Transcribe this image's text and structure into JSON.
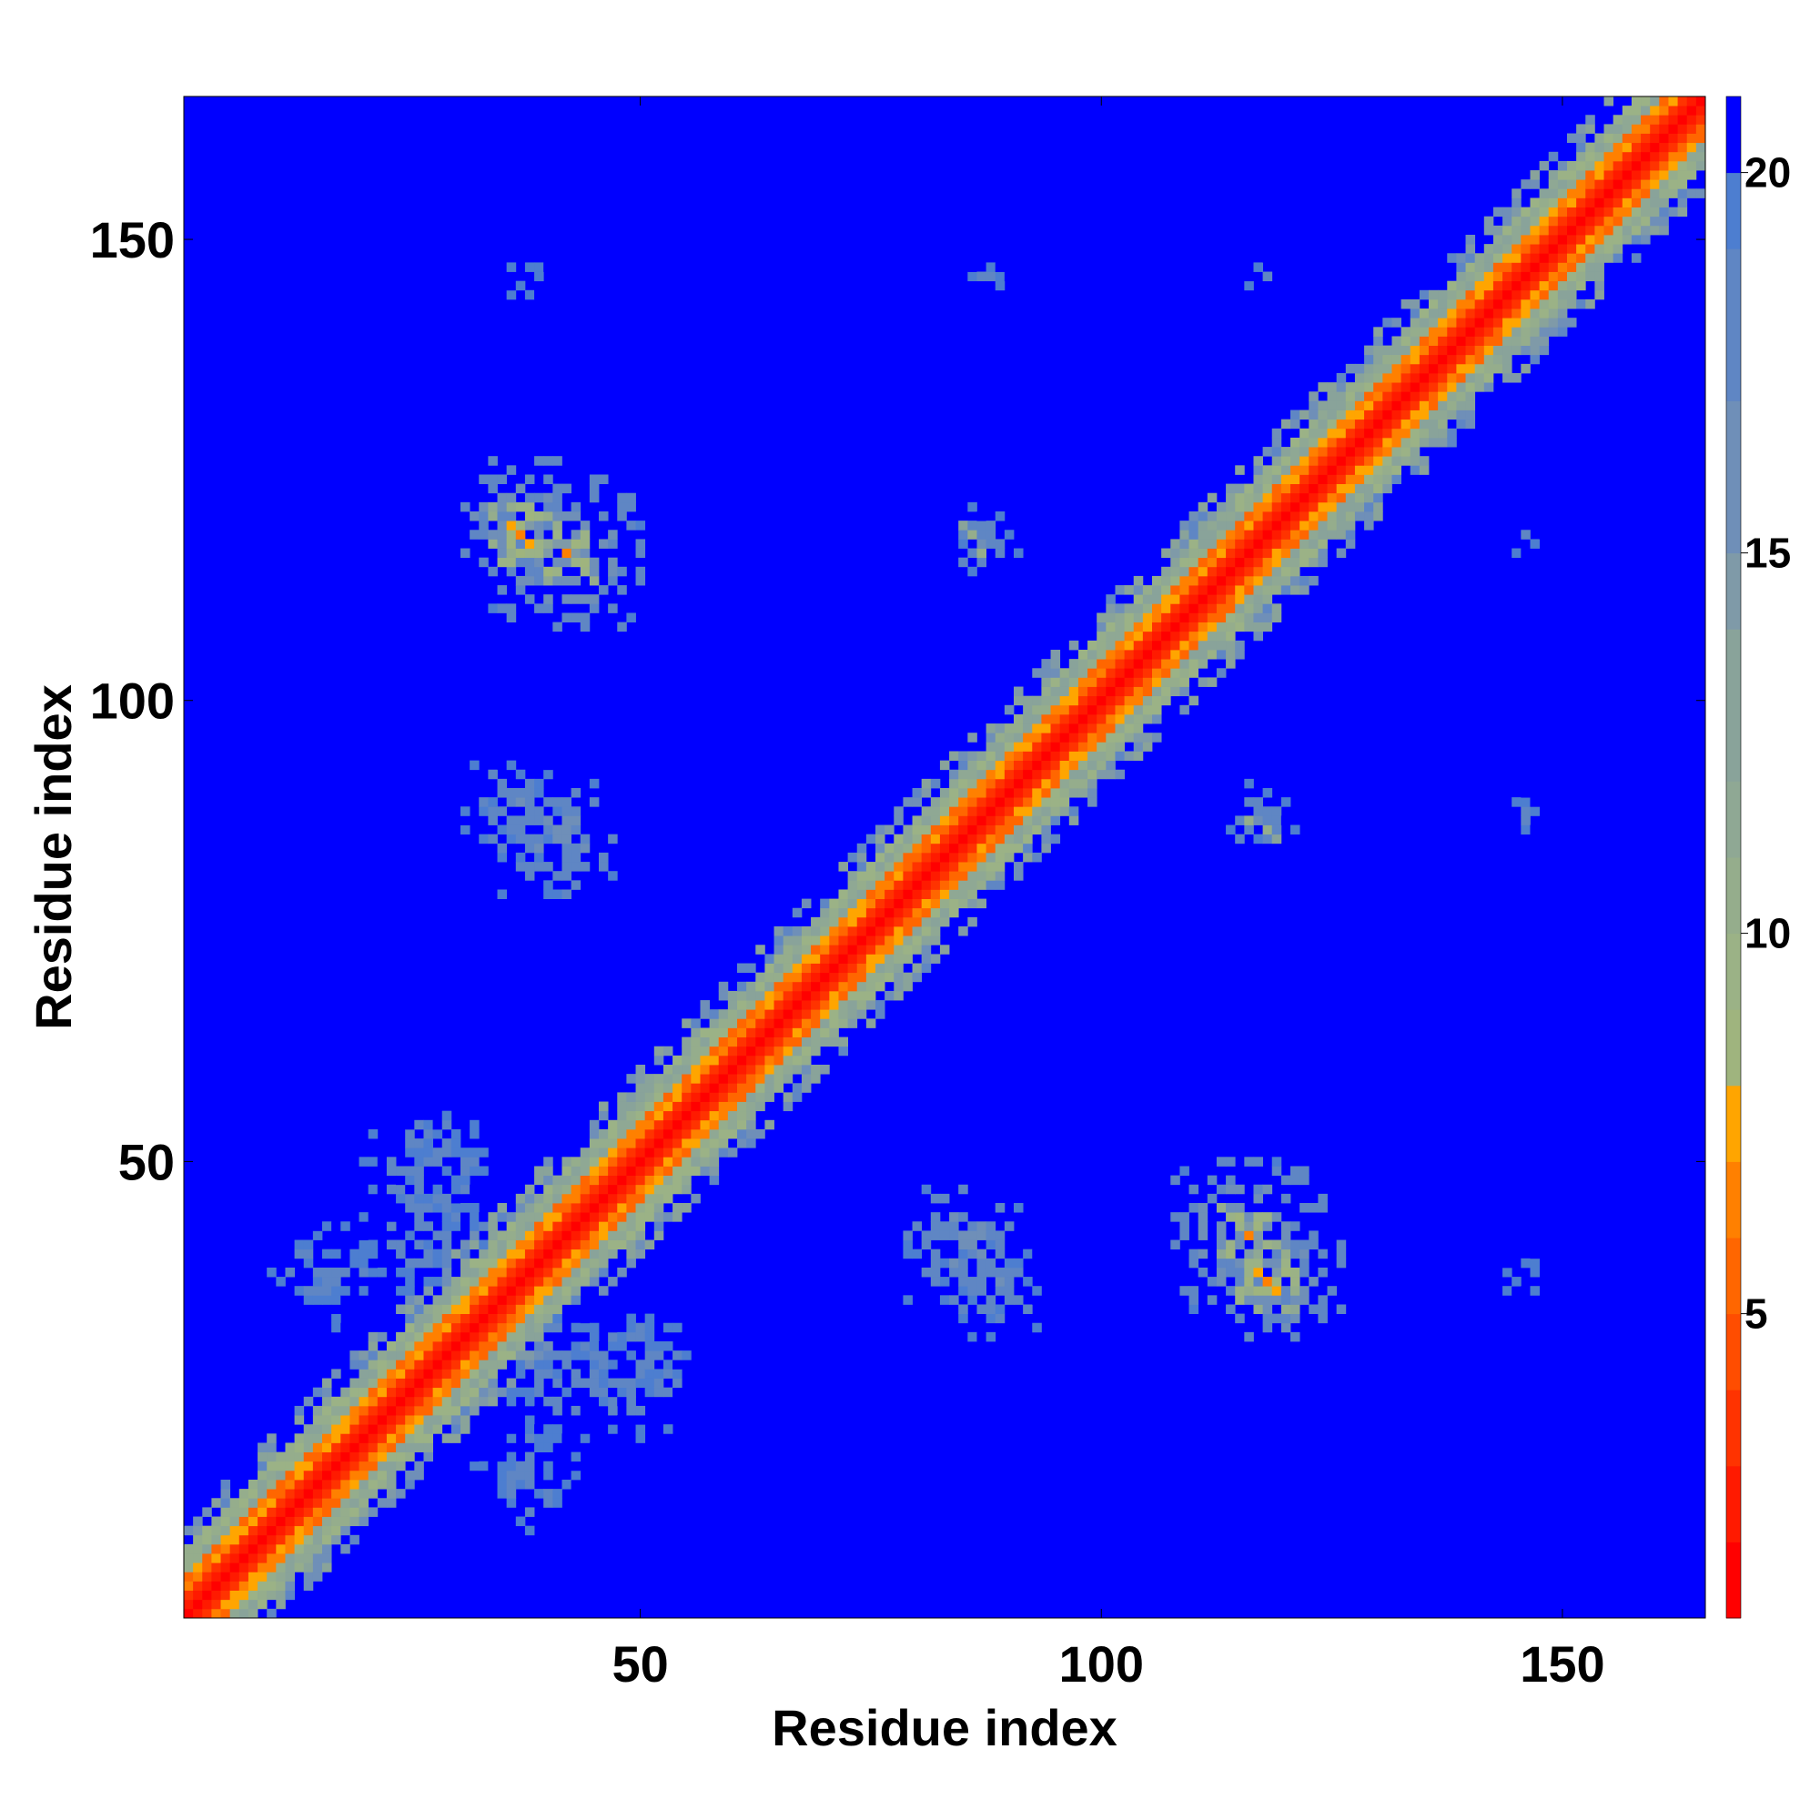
{
  "chart_data": {
    "type": "heatmap",
    "title": "",
    "xlabel": "Residue index",
    "ylabel": "Residue index",
    "n_residues": 165,
    "xlim": [
      1,
      165
    ],
    "ylim": [
      1,
      165
    ],
    "xticks": [
      50,
      100,
      150
    ],
    "yticks": [
      50,
      100,
      150
    ],
    "colorbar": {
      "range": [
        1,
        21
      ],
      "ticks": [
        5,
        10,
        15,
        20
      ],
      "levels": [
        {
          "max": 2,
          "color": "#ff0000"
        },
        {
          "max": 3,
          "color": "#ff1a00"
        },
        {
          "max": 4,
          "color": "#ff3300"
        },
        {
          "max": 5,
          "color": "#ff4d00"
        },
        {
          "max": 6,
          "color": "#ff6600"
        },
        {
          "max": 7,
          "color": "#ff8000"
        },
        {
          "max": 8,
          "color": "#ffa500"
        },
        {
          "max": 9,
          "color": "#9fb47e"
        },
        {
          "max": 10,
          "color": "#9bb286"
        },
        {
          "max": 11,
          "color": "#95ad8c"
        },
        {
          "max": 12,
          "color": "#8fa894"
        },
        {
          "max": 14,
          "color": "#89a39a"
        },
        {
          "max": 15,
          "color": "#7f9aa8"
        },
        {
          "max": 17,
          "color": "#6f8fb8"
        },
        {
          "max": 19,
          "color": "#5f86c4"
        },
        {
          "max": 20,
          "color": "#4d7ed0"
        },
        {
          "max": 21,
          "color": "#0000ff"
        }
      ]
    },
    "contact_clusters": [
      {
        "x": 37,
        "y": 118,
        "value": 6,
        "spread": 3
      },
      {
        "x": 37,
        "y": 120,
        "value": 14,
        "spread": 6
      },
      {
        "x": 37,
        "y": 146,
        "value": 18,
        "spread": 5
      },
      {
        "x": 37,
        "y": 88,
        "value": 16,
        "spread": 6
      },
      {
        "x": 38,
        "y": 16,
        "value": 17,
        "spread": 7
      },
      {
        "x": 27,
        "y": 42,
        "value": 17,
        "spread": 10
      },
      {
        "x": 85,
        "y": 41,
        "value": 15,
        "spread": 6
      },
      {
        "x": 86,
        "y": 117,
        "value": 8,
        "spread": 2
      },
      {
        "x": 88,
        "y": 146,
        "value": 18,
        "spread": 3
      },
      {
        "x": 116,
        "y": 42,
        "value": 6,
        "spread": 3
      },
      {
        "x": 116,
        "y": 42,
        "value": 14,
        "spread": 8
      },
      {
        "x": 117,
        "y": 87,
        "value": 16,
        "spread": 4
      },
      {
        "x": 118,
        "y": 146,
        "value": 18,
        "spread": 3
      },
      {
        "x": 146,
        "y": 117,
        "value": 18,
        "spread": 3
      },
      {
        "x": 146,
        "y": 87,
        "value": 18,
        "spread": 3
      },
      {
        "x": 146,
        "y": 40,
        "value": 18,
        "spread": 4
      },
      {
        "x": 50,
        "y": 27,
        "value": 17,
        "spread": 8
      }
    ],
    "colormap": [
      "#ff0000",
      "#ffa500",
      "#9fb47e",
      "#5f86c4",
      "#0000ff"
    ]
  }
}
